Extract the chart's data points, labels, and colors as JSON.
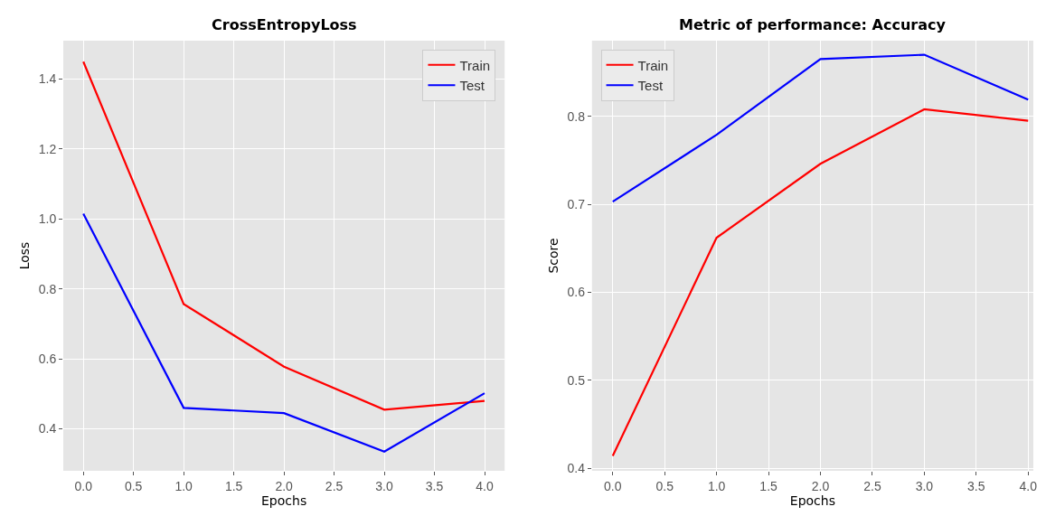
{
  "chart_data": [
    {
      "type": "line",
      "title": "CrossEntropyLoss",
      "xlabel": "Epochs",
      "ylabel": "Loss",
      "x": [
        0,
        1,
        2,
        3,
        4
      ],
      "series": [
        {
          "name": "Train",
          "color": "#ff0000",
          "values": [
            1.45,
            0.757,
            0.578,
            0.455,
            0.48
          ]
        },
        {
          "name": "Test",
          "color": "#0000ff",
          "values": [
            1.015,
            0.46,
            0.445,
            0.335,
            0.502
          ]
        }
      ],
      "xlim": [
        -0.2,
        4.2
      ],
      "xticks": [
        {
          "value": 0,
          "label": "0.0"
        },
        0.5,
        {
          "value": 1,
          "label": "1.0"
        },
        1.5,
        {
          "value": 2,
          "label": "2.0"
        },
        2.5,
        {
          "value": 3,
          "label": "3.0"
        },
        3.5,
        {
          "value": 4,
          "label": "4.0"
        }
      ],
      "ylim": [
        0.28,
        1.51
      ],
      "yticks": [
        0.4,
        0.6,
        0.8,
        {
          "value": 1,
          "label": "1.0"
        },
        1.2,
        1.4
      ],
      "grid": true,
      "legend": "top right",
      "line_style": "solid",
      "marker": "none"
    },
    {
      "type": "line",
      "title": "Metric of performance: Accuracy",
      "xlabel": "Epochs",
      "ylabel": "Score",
      "x": [
        0,
        1,
        2,
        3,
        4
      ],
      "series": [
        {
          "name": "Train",
          "color": "#ff0000",
          "values": [
            0.414,
            0.662,
            0.746,
            0.808,
            0.795
          ]
        },
        {
          "name": "Test",
          "color": "#0000ff",
          "values": [
            0.703,
            0.779,
            0.865,
            0.87,
            0.819
          ]
        }
      ],
      "xlim": [
        -0.2,
        4.05
      ],
      "xticks": [
        {
          "value": 0,
          "label": "0.0"
        },
        0.5,
        {
          "value": 1,
          "label": "1.0"
        },
        1.5,
        {
          "value": 2,
          "label": "2.0"
        },
        2.5,
        {
          "value": 3,
          "label": "3.0"
        },
        3.5,
        {
          "value": 4,
          "label": "4.0"
        }
      ],
      "ylim": [
        0.397,
        0.886
      ],
      "yticks": [
        0.4,
        0.5,
        0.6,
        0.7,
        0.8
      ],
      "grid": true,
      "legend": "top left",
      "line_style": "solid",
      "marker": "none"
    }
  ]
}
